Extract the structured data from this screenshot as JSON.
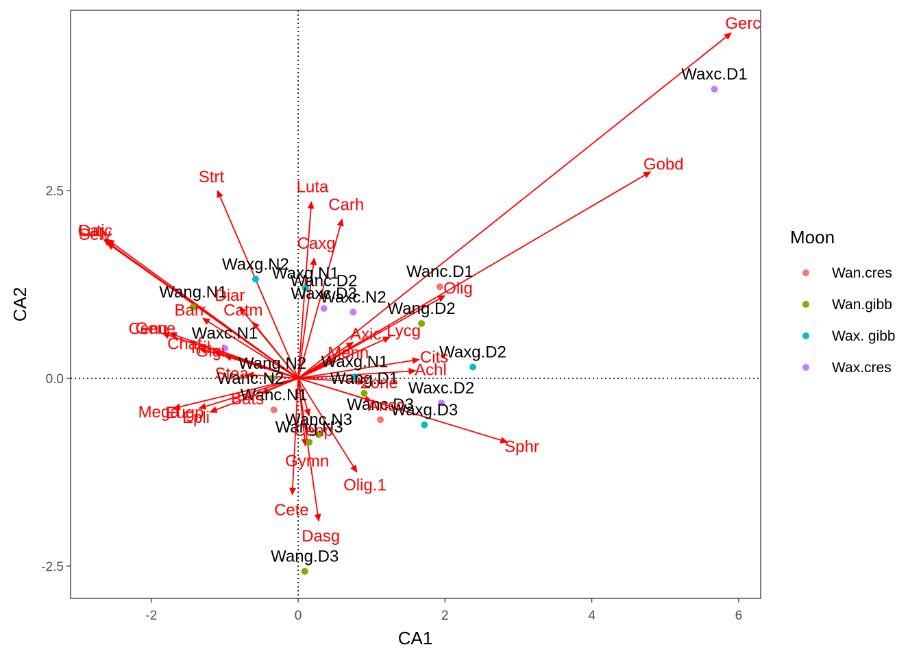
{
  "chart_data": {
    "type": "scatter",
    "title": "",
    "xlabel": "CA1",
    "ylabel": "CA2",
    "xlim": [
      -3.1,
      6.3
    ],
    "ylim": [
      -2.93,
      4.9
    ],
    "xticks": [
      -2,
      0,
      2,
      4,
      6
    ],
    "yticks": [
      -2.5,
      0.0,
      2.5
    ],
    "xtick_labels": [
      "-2",
      "0",
      "2",
      "4",
      "6"
    ],
    "ytick_labels": [
      "-2.5",
      "0.0",
      "2.5"
    ],
    "grid": false,
    "reference_lines": "dotted lines at x=0 and y=0",
    "arrow_color": "#ff0000",
    "species_arrows": [
      {
        "label": "Gerc",
        "x": 5.9,
        "y": 4.6
      },
      {
        "label": "Gobd",
        "x": 4.8,
        "y": 2.75
      },
      {
        "label": "Selv",
        "x": -2.6,
        "y": 1.8
      },
      {
        "label": "Lutj",
        "x": -2.65,
        "y": 1.85
      },
      {
        "label": "Carc",
        "x": -2.6,
        "y": 1.85
      },
      {
        "label": "Strt",
        "x": -1.1,
        "y": 2.5
      },
      {
        "label": "Luta",
        "x": 0.18,
        "y": 2.35
      },
      {
        "label": "Carh",
        "x": 0.6,
        "y": 2.12
      },
      {
        "label": "Olig",
        "x": 2.0,
        "y": 1.1
      },
      {
        "label": "Cenu",
        "x": -1.85,
        "y": 0.6
      },
      {
        "label": "Barr",
        "x": -1.3,
        "y": 0.8
      },
      {
        "label": "Diar",
        "x": -0.8,
        "y": 0.95
      },
      {
        "label": "Gene",
        "x": -1.75,
        "y": 0.6
      },
      {
        "label": "Catm",
        "x": -0.62,
        "y": 0.75
      },
      {
        "label": "Caxg",
        "x": 0.22,
        "y": 1.6
      },
      {
        "label": "Lycg",
        "x": 1.25,
        "y": 0.55
      },
      {
        "label": "Axic",
        "x": 0.75,
        "y": 0.48
      },
      {
        "label": "Cits",
        "x": 1.65,
        "y": 0.25
      },
      {
        "label": "Achl",
        "x": 1.6,
        "y": 0.1
      },
      {
        "label": "Chaf",
        "x": -1.35,
        "y": 0.4
      },
      {
        "label": "Tril",
        "x": -1.15,
        "y": 0.35
      },
      {
        "label": "Menn",
        "x": 0.5,
        "y": 0.25
      },
      {
        "label": "Mega",
        "x": -1.7,
        "y": -0.4
      },
      {
        "label": "Eugp",
        "x": -1.35,
        "y": -0.4
      },
      {
        "label": "Epli",
        "x": -1.2,
        "y": -0.45
      },
      {
        "label": "Bats",
        "x": -0.5,
        "y": -0.2
      },
      {
        "label": "Cenp",
        "x": 0.15,
        "y": -0.5
      },
      {
        "label": "Gymn",
        "x": 0.1,
        "y": -0.9
      },
      {
        "label": "Ancc",
        "x": 1.0,
        "y": -0.3
      },
      {
        "label": "Zone",
        "x": 0.9,
        "y": -0.05
      },
      {
        "label": "Sphr",
        "x": 2.85,
        "y": -0.85
      },
      {
        "label": "Olig.1",
        "x": 0.8,
        "y": -1.25
      },
      {
        "label": "Cete",
        "x": -0.08,
        "y": -1.55
      },
      {
        "label": "Dasg",
        "x": 0.28,
        "y": -1.9
      },
      {
        "label": "Stea",
        "x": -0.7,
        "y": 0.05
      },
      {
        "label": "Gigi",
        "x": -1.0,
        "y": 0.3
      }
    ],
    "site_points": [
      {
        "label": "Waxc.D1",
        "x": 5.67,
        "y": 3.85,
        "moon": "Wax.cres"
      },
      {
        "label": "Wanc.D1",
        "x": 1.93,
        "y": 1.22,
        "moon": "Wan.cres"
      },
      {
        "label": "Wanc.D2",
        "x": 0.35,
        "y": 1.1,
        "moon": "Wan.cres"
      },
      {
        "label": "Wang.D2",
        "x": 1.68,
        "y": 0.73,
        "moon": "Wan.gibb"
      },
      {
        "label": "Waxg.D2",
        "x": 2.38,
        "y": 0.15,
        "moon": "Wax. gibb"
      },
      {
        "label": "Waxc.D2",
        "x": 1.95,
        "y": -0.33,
        "moon": "Wax.cres"
      },
      {
        "label": "Waxg.D3",
        "x": 1.72,
        "y": -0.62,
        "moon": "Wax. gibb"
      },
      {
        "label": "Wanc.D3",
        "x": 1.12,
        "y": -0.55,
        "moon": "Wan.cres"
      },
      {
        "label": "Wang.D1",
        "x": 0.9,
        "y": -0.2,
        "moon": "Wan.gibb"
      },
      {
        "label": "Waxc.N2",
        "x": 0.75,
        "y": 0.88,
        "moon": "Wax.cres"
      },
      {
        "label": "Waxc.D3",
        "x": 0.35,
        "y": 0.93,
        "moon": "Wax.cres"
      },
      {
        "label": "Waxg.N1",
        "x": 0.77,
        "y": 0.02,
        "moon": "Wax. gibb"
      },
      {
        "label": "Waxg.N2",
        "x": -0.58,
        "y": 1.32,
        "moon": "Wax. gibb"
      },
      {
        "label": "Waxg.N1",
        "x": 0.1,
        "y": 1.2,
        "moon": "Wax. gibb"
      },
      {
        "label": "Wang.N1",
        "x": -1.43,
        "y": 0.95,
        "moon": "Wan.gibb"
      },
      {
        "label": "Waxc.N1",
        "x": -1.0,
        "y": 0.4,
        "moon": "Wax.cres"
      },
      {
        "label": "Wanc.N2",
        "x": -0.65,
        "y": -0.2,
        "moon": "Wan.cres"
      },
      {
        "label": "Wang.N2",
        "x": -0.35,
        "y": 0.0,
        "moon": "Wan.gibb"
      },
      {
        "label": "Wanc.N1",
        "x": -0.33,
        "y": -0.42,
        "moon": "Wan.cres"
      },
      {
        "label": "Wanc.N3",
        "x": 0.28,
        "y": -0.75,
        "moon": "Wan.gibb"
      },
      {
        "label": "Wang.N3",
        "x": 0.15,
        "y": -0.85,
        "moon": "Wan.gibb"
      },
      {
        "label": "Wang.D3",
        "x": 0.09,
        "y": -2.57,
        "moon": "Wan.gibb"
      }
    ],
    "legend": {
      "title": "Moon",
      "position": "right",
      "entries": [
        {
          "label": "Wan.cres",
          "color": "#F8766D"
        },
        {
          "label": "Wan.gibb",
          "color": "#7CAE00"
        },
        {
          "label": "Wax. gibb",
          "color": "#00BFC4"
        },
        {
          "label": "Wax.cres",
          "color": "#C77CFF"
        }
      ]
    }
  }
}
